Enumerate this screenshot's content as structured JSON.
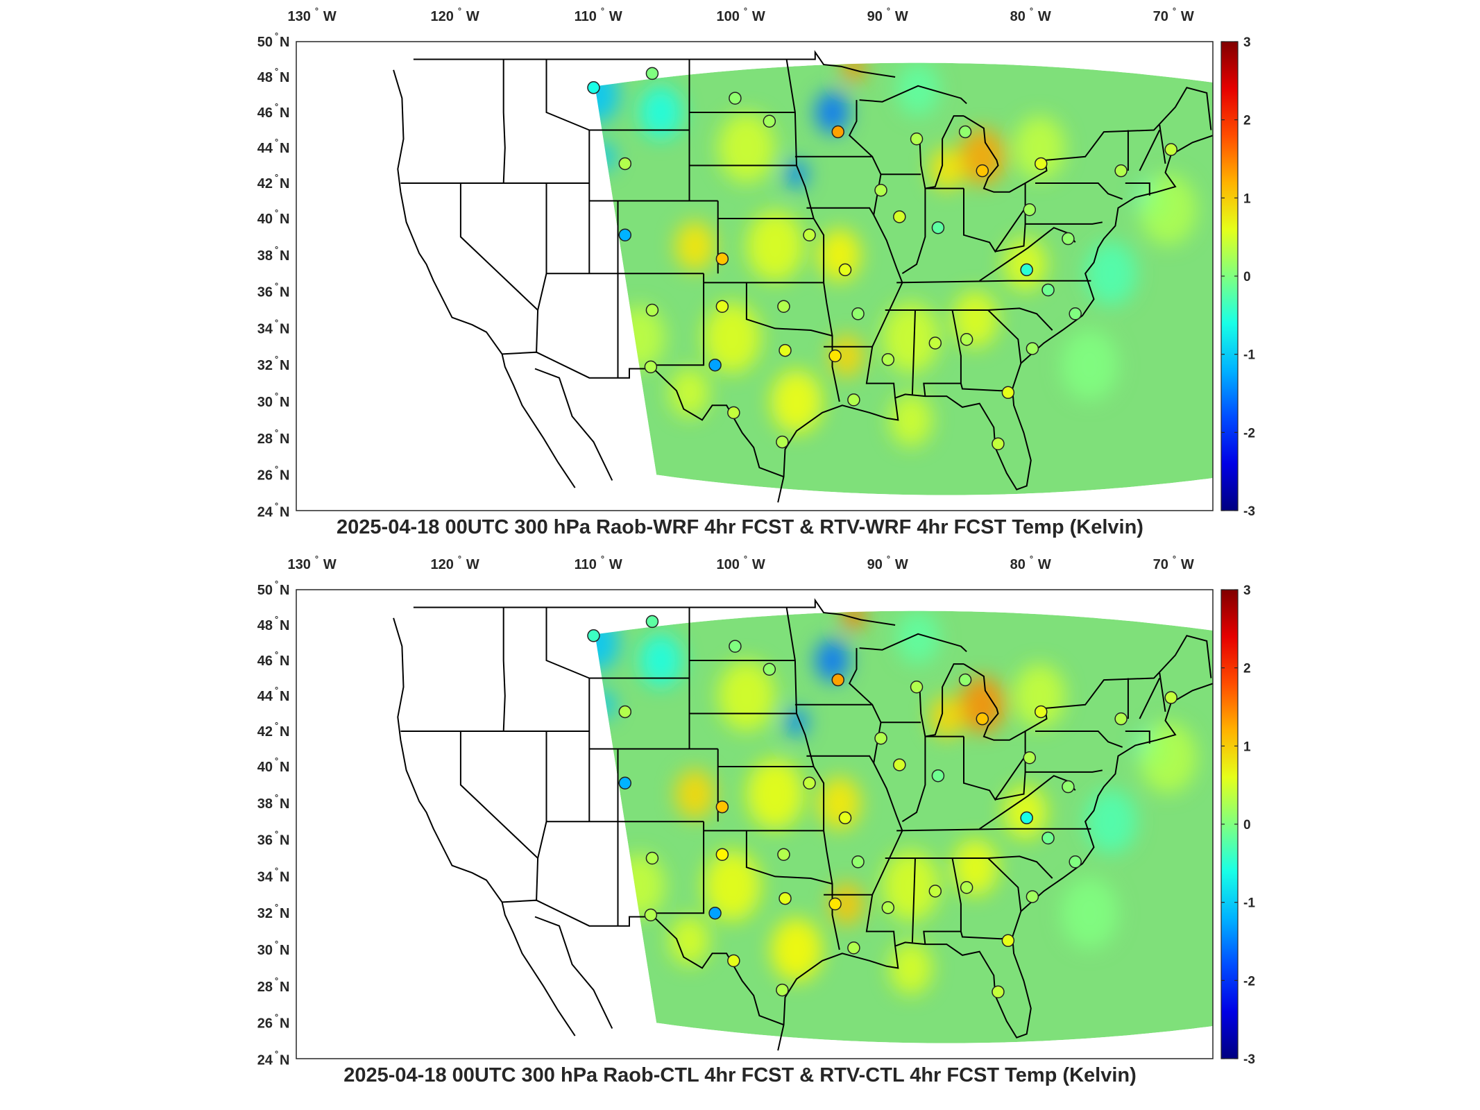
{
  "lon_ticks": [
    {
      "deg": "130",
      "dir": "W",
      "lon": -130
    },
    {
      "deg": "120",
      "dir": "W",
      "lon": -120
    },
    {
      "deg": "110",
      "dir": "W",
      "lon": -110
    },
    {
      "deg": "100",
      "dir": "W",
      "lon": -100
    },
    {
      "deg": "90",
      "dir": "W",
      "lon": -90
    },
    {
      "deg": "80",
      "dir": "W",
      "lon": -80
    },
    {
      "deg": "70",
      "dir": "W",
      "lon": -70
    }
  ],
  "lat_ticks": [
    {
      "deg": "50",
      "dir": "N",
      "lat": 50
    },
    {
      "deg": "48",
      "dir": "N",
      "lat": 48
    },
    {
      "deg": "46",
      "dir": "N",
      "lat": 46
    },
    {
      "deg": "44",
      "dir": "N",
      "lat": 44
    },
    {
      "deg": "42",
      "dir": "N",
      "lat": 42
    },
    {
      "deg": "40",
      "dir": "N",
      "lat": 40
    },
    {
      "deg": "38",
      "dir": "N",
      "lat": 38
    },
    {
      "deg": "36",
      "dir": "N",
      "lat": 36
    },
    {
      "deg": "34",
      "dir": "N",
      "lat": 34
    },
    {
      "deg": "32",
      "dir": "N",
      "lat": 32
    },
    {
      "deg": "30",
      "dir": "N",
      "lat": 30
    },
    {
      "deg": "28",
      "dir": "N",
      "lat": 28
    },
    {
      "deg": "26",
      "dir": "N",
      "lat": 26
    },
    {
      "deg": "24",
      "dir": "N",
      "lat": 24
    }
  ],
  "colorbar": {
    "ticks": [
      "3",
      "2",
      "1",
      "0",
      "-1",
      "-2",
      "-3"
    ],
    "min": -3,
    "max": 3,
    "colormap": "jet"
  },
  "colors": {
    "background_field": "#7fe07a",
    "field_yellow": "#e7ee3a",
    "field_cyan": "#3ce0d4",
    "border": "#000000"
  },
  "panels": [
    {
      "title": "2025-04-18 00UTC 300 hPa Raob-WRF 4hr FCST & RTV-WRF 4hr FCST Temp (Kelvin)",
      "stations": [
        {
          "lon": -110.7,
          "lat": 47.4,
          "value": -0.6
        },
        {
          "lon": -106.6,
          "lat": 48.2,
          "value": 0.0
        },
        {
          "lon": -100.8,
          "lat": 46.8,
          "value": 0.1
        },
        {
          "lon": -98.4,
          "lat": 45.5,
          "value": 0.2
        },
        {
          "lon": -93.6,
          "lat": 44.9,
          "value": 1.3
        },
        {
          "lon": -88.1,
          "lat": 44.5,
          "value": 0.3
        },
        {
          "lon": -84.7,
          "lat": 44.9,
          "value": 0.1
        },
        {
          "lon": -83.5,
          "lat": 42.7,
          "value": 1.1
        },
        {
          "lon": -79.4,
          "lat": 43.1,
          "value": 0.6
        },
        {
          "lon": -73.8,
          "lat": 42.7,
          "value": 0.3
        },
        {
          "lon": -70.3,
          "lat": 43.9,
          "value": 0.4
        },
        {
          "lon": -108.5,
          "lat": 43.1,
          "value": 0.3
        },
        {
          "lon": -90.6,
          "lat": 41.6,
          "value": 0.3
        },
        {
          "lon": -89.3,
          "lat": 40.1,
          "value": 0.5
        },
        {
          "lon": -86.6,
          "lat": 39.5,
          "value": -0.2
        },
        {
          "lon": -80.2,
          "lat": 40.5,
          "value": 0.2
        },
        {
          "lon": -77.5,
          "lat": 38.9,
          "value": 0.1
        },
        {
          "lon": -108.5,
          "lat": 39.1,
          "value": -1.2
        },
        {
          "lon": -101.7,
          "lat": 37.8,
          "value": 1.1
        },
        {
          "lon": -95.6,
          "lat": 39.1,
          "value": 0.4
        },
        {
          "lon": -93.1,
          "lat": 37.2,
          "value": 0.6
        },
        {
          "lon": -80.4,
          "lat": 37.2,
          "value": -0.5
        },
        {
          "lon": -78.9,
          "lat": 36.1,
          "value": -0.1
        },
        {
          "lon": -106.6,
          "lat": 35.0,
          "value": 0.3
        },
        {
          "lon": -101.7,
          "lat": 35.2,
          "value": 0.6
        },
        {
          "lon": -97.4,
          "lat": 35.2,
          "value": 0.3
        },
        {
          "lon": -92.2,
          "lat": 34.8,
          "value": 0.1
        },
        {
          "lon": -86.8,
          "lat": 33.2,
          "value": 0.4
        },
        {
          "lon": -84.6,
          "lat": 33.4,
          "value": 0.3
        },
        {
          "lon": -77.0,
          "lat": 34.8,
          "value": 0.0
        },
        {
          "lon": -106.7,
          "lat": 31.9,
          "value": 0.3
        },
        {
          "lon": -102.2,
          "lat": 32.0,
          "value": -1.3
        },
        {
          "lon": -97.3,
          "lat": 32.8,
          "value": 0.6
        },
        {
          "lon": -93.8,
          "lat": 32.5,
          "value": 0.9
        },
        {
          "lon": -90.1,
          "lat": 32.3,
          "value": 0.3
        },
        {
          "lon": -80.0,
          "lat": 32.9,
          "value": 0.2
        },
        {
          "lon": -100.9,
          "lat": 29.4,
          "value": 0.4
        },
        {
          "lon": -97.5,
          "lat": 27.8,
          "value": 0.3
        },
        {
          "lon": -92.5,
          "lat": 30.1,
          "value": 0.3
        },
        {
          "lon": -81.7,
          "lat": 30.5,
          "value": 0.6
        },
        {
          "lon": -82.4,
          "lat": 27.7,
          "value": 0.4
        }
      ]
    },
    {
      "title": "2025-04-18 00UTC 300 hPa Raob-CTL 4hr FCST & RTV-CTL 4hr FCST Temp (Kelvin)",
      "stations": [
        {
          "lon": -110.7,
          "lat": 47.4,
          "value": -0.4
        },
        {
          "lon": -106.6,
          "lat": 48.2,
          "value": -0.2
        },
        {
          "lon": -100.8,
          "lat": 46.8,
          "value": 0.0
        },
        {
          "lon": -98.4,
          "lat": 45.5,
          "value": 0.1
        },
        {
          "lon": -93.6,
          "lat": 44.9,
          "value": 1.3
        },
        {
          "lon": -88.1,
          "lat": 44.5,
          "value": 0.3
        },
        {
          "lon": -84.7,
          "lat": 44.9,
          "value": 0.1
        },
        {
          "lon": -83.5,
          "lat": 42.7,
          "value": 1.1
        },
        {
          "lon": -79.4,
          "lat": 43.1,
          "value": 0.6
        },
        {
          "lon": -73.8,
          "lat": 42.7,
          "value": 0.3
        },
        {
          "lon": -70.3,
          "lat": 43.9,
          "value": 0.4
        },
        {
          "lon": -108.5,
          "lat": 43.1,
          "value": 0.3
        },
        {
          "lon": -90.6,
          "lat": 41.6,
          "value": 0.3
        },
        {
          "lon": -89.3,
          "lat": 40.1,
          "value": 0.5
        },
        {
          "lon": -86.6,
          "lat": 39.5,
          "value": -0.1
        },
        {
          "lon": -80.2,
          "lat": 40.5,
          "value": 0.3
        },
        {
          "lon": -77.5,
          "lat": 38.9,
          "value": 0.1
        },
        {
          "lon": -108.5,
          "lat": 39.1,
          "value": -1.2
        },
        {
          "lon": -101.7,
          "lat": 37.8,
          "value": 1.1
        },
        {
          "lon": -95.6,
          "lat": 39.1,
          "value": 0.4
        },
        {
          "lon": -93.1,
          "lat": 37.2,
          "value": 0.6
        },
        {
          "lon": -80.4,
          "lat": 37.2,
          "value": -0.6
        },
        {
          "lon": -78.9,
          "lat": 36.1,
          "value": -0.1
        },
        {
          "lon": -106.6,
          "lat": 35.0,
          "value": 0.3
        },
        {
          "lon": -101.7,
          "lat": 35.2,
          "value": 0.8
        },
        {
          "lon": -97.4,
          "lat": 35.2,
          "value": 0.3
        },
        {
          "lon": -92.2,
          "lat": 34.8,
          "value": 0.1
        },
        {
          "lon": -86.8,
          "lat": 33.2,
          "value": 0.4
        },
        {
          "lon": -84.6,
          "lat": 33.4,
          "value": 0.3
        },
        {
          "lon": -77.0,
          "lat": 34.8,
          "value": 0.0
        },
        {
          "lon": -106.7,
          "lat": 31.9,
          "value": 0.3
        },
        {
          "lon": -102.2,
          "lat": 32.0,
          "value": -1.3
        },
        {
          "lon": -97.3,
          "lat": 32.8,
          "value": 0.6
        },
        {
          "lon": -93.8,
          "lat": 32.5,
          "value": 0.9
        },
        {
          "lon": -90.1,
          "lat": 32.3,
          "value": 0.3
        },
        {
          "lon": -80.0,
          "lat": 32.9,
          "value": 0.2
        },
        {
          "lon": -100.9,
          "lat": 29.4,
          "value": 0.6
        },
        {
          "lon": -97.5,
          "lat": 27.8,
          "value": 0.3
        },
        {
          "lon": -92.5,
          "lat": 30.1,
          "value": 0.3
        },
        {
          "lon": -81.7,
          "lat": 30.5,
          "value": 0.6
        },
        {
          "lon": -82.4,
          "lat": 27.7,
          "value": 0.4
        }
      ]
    }
  ]
}
